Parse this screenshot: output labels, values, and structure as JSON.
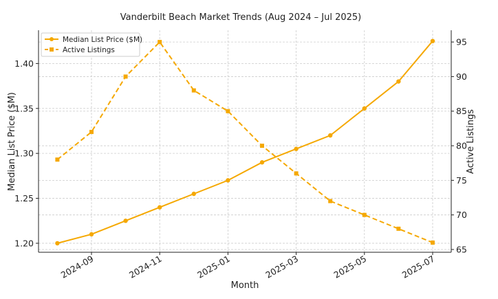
{
  "chart_data": {
    "type": "line",
    "title": "Vanderbilt Beach Market Trends (Aug 2024 – Jul 2025)",
    "xlabel": "Month",
    "ylabel_left": "Median List Price ($M)",
    "ylabel_right": "Active Listings",
    "x": [
      "2024-08",
      "2024-09",
      "2024-10",
      "2024-11",
      "2024-12",
      "2025-01",
      "2025-02",
      "2025-03",
      "2025-04",
      "2025-05",
      "2025-06",
      "2025-07"
    ],
    "x_tick_labels": [
      "2024-09",
      "2024-11",
      "2025-01",
      "2025-03",
      "2025-05",
      "2025-07"
    ],
    "y_left_ticks": [
      "1.20",
      "1.25",
      "1.30",
      "1.35",
      "1.40"
    ],
    "y_right_ticks": [
      "65",
      "70",
      "75",
      "80",
      "85",
      "90",
      "95"
    ],
    "ylim_left": [
      1.19,
      1.437
    ],
    "ylim_right": [
      64.6,
      96.7
    ],
    "series": [
      {
        "name": "Median List Price ($M)",
        "axis": "left",
        "marker": "circle",
        "line_style": "solid",
        "color": "#f5a800",
        "values": [
          1.2,
          1.21,
          1.225,
          1.24,
          1.255,
          1.27,
          1.29,
          1.305,
          1.32,
          1.35,
          1.38,
          1.425
        ]
      },
      {
        "name": "Active Listings",
        "axis": "right",
        "marker": "square",
        "line_style": "dashed",
        "color": "#f5a800",
        "values": [
          78,
          82,
          90,
          95,
          88,
          85,
          80,
          76,
          72,
          70,
          68,
          66
        ]
      }
    ],
    "grid": true,
    "legend_position": "top-left"
  }
}
